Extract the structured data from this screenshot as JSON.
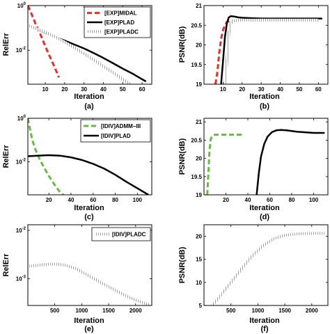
{
  "colors": {
    "red": "#e03030",
    "black": "#000000",
    "gray": "#8a8a8a",
    "green": "#66bb44"
  },
  "chart_data": [
    {
      "id": "a",
      "caption": "(a)",
      "type": "line",
      "xlabel": "Iteration",
      "ylabel": "RelErr",
      "xlim": [
        1,
        65
      ],
      "ylim": [
        0.0003,
        1
      ],
      "yscale": "log",
      "xticks": [
        10,
        20,
        30,
        40,
        50,
        60
      ],
      "xtick_labels": [
        "10",
        "20",
        "30",
        "40",
        "50",
        "60"
      ],
      "yticks": [
        1,
        0.01
      ],
      "ytick_labels": [
        {
          "base": "10",
          "exp": "0"
        },
        {
          "base": "10",
          "exp": "-2"
        }
      ],
      "legend": {
        "position": "top-right"
      },
      "series": [
        {
          "name": "[EXP]MIDAL",
          "style": "dash",
          "color": "red",
          "x": [
            1,
            3,
            5,
            8,
            10,
            12,
            14,
            16,
            17
          ],
          "y": [
            1,
            0.4,
            0.15,
            0.04,
            0.015,
            0.006,
            0.0025,
            0.001,
            0.0006
          ]
        },
        {
          "name": "[EXP]PLAD",
          "style": "solid",
          "color": "black",
          "x": [
            1,
            5,
            10,
            15,
            20,
            25,
            30,
            35,
            40,
            45,
            50,
            55,
            60,
            62
          ],
          "y": [
            0.13,
            0.09,
            0.06,
            0.04,
            0.027,
            0.018,
            0.012,
            0.0075,
            0.0045,
            0.0026,
            0.0015,
            0.0009,
            0.0005,
            0.0004
          ]
        },
        {
          "name": "[EXP]PLADC",
          "style": "hatch",
          "color": "gray",
          "x": [
            1,
            5,
            10,
            15,
            20,
            25,
            30,
            35,
            40,
            45,
            50,
            54
          ],
          "y": [
            0.13,
            0.095,
            0.065,
            0.04,
            0.023,
            0.013,
            0.007,
            0.0037,
            0.0019,
            0.001,
            0.0005,
            0.0003
          ]
        }
      ]
    },
    {
      "id": "b",
      "caption": "(b)",
      "type": "line",
      "xlabel": "Iteration",
      "ylabel": "PSNR(dB)",
      "xlim": [
        0,
        65
      ],
      "ylim": [
        19,
        21
      ],
      "xticks": [
        10,
        20,
        30,
        40,
        50,
        60
      ],
      "xtick_labels": [
        "10",
        "20",
        "30",
        "40",
        "50",
        "60"
      ],
      "yticks": [
        19,
        19.5,
        20,
        20.5,
        21
      ],
      "ytick_labels": [
        "19",
        "19.5",
        "20",
        "20.5",
        "21"
      ],
      "series": [
        {
          "name": "[EXP]MIDAL",
          "style": "dash",
          "color": "red",
          "x": [
            6,
            7,
            8,
            9,
            10,
            11,
            12,
            14,
            15
          ],
          "y": [
            19,
            19.3,
            19.8,
            20.15,
            20.38,
            20.5,
            20.58,
            20.62,
            20.62
          ]
        },
        {
          "name": "[EXP]PLAD",
          "style": "solid",
          "color": "black",
          "x": [
            9,
            10,
            11,
            12,
            13,
            14,
            16,
            18,
            20,
            25,
            30,
            40,
            50,
            60,
            62
          ],
          "y": [
            19,
            19.6,
            20.2,
            20.55,
            20.7,
            20.73,
            20.72,
            20.7,
            20.69,
            20.68,
            20.67,
            20.67,
            20.67,
            20.67,
            20.67
          ]
        },
        {
          "name": "[EXP]PLADC",
          "style": "hatch",
          "color": "gray",
          "x": [
            11,
            12,
            13,
            14,
            15,
            17,
            20,
            30,
            40,
            50,
            60
          ],
          "y": [
            19,
            19.6,
            20.3,
            20.55,
            20.6,
            20.62,
            20.63,
            20.63,
            20.63,
            20.63,
            20.63
          ]
        }
      ]
    },
    {
      "id": "c",
      "caption": "(c)",
      "type": "line",
      "xlabel": "Iteration",
      "ylabel": "RelErr",
      "xlim": [
        1,
        113
      ],
      "ylim": [
        0.0003,
        1
      ],
      "yscale": "log",
      "xticks": [
        20,
        40,
        60,
        80,
        100
      ],
      "xtick_labels": [
        "20",
        "40",
        "60",
        "80",
        "100"
      ],
      "yticks": [
        1,
        0.01
      ],
      "ytick_labels": [
        {
          "base": "10",
          "exp": "0"
        },
        {
          "base": "10",
          "exp": "-2"
        }
      ],
      "legend": {
        "position": "top-right"
      },
      "series": [
        {
          "name": "[IDIV]ADMM−III",
          "style": "dash",
          "color": "green",
          "x": [
            1,
            3,
            5,
            8,
            12,
            16,
            20,
            25,
            30,
            33
          ],
          "y": [
            1,
            0.3,
            0.1,
            0.035,
            0.012,
            0.005,
            0.0022,
            0.0009,
            0.0004,
            0.0003
          ]
        },
        {
          "name": "[IDIV]PLAD",
          "style": "solid",
          "color": "black",
          "x": [
            1,
            10,
            20,
            30,
            40,
            50,
            60,
            70,
            80,
            90,
            100,
            110
          ],
          "y": [
            0.018,
            0.019,
            0.02,
            0.019,
            0.016,
            0.012,
            0.008,
            0.0048,
            0.0025,
            0.0012,
            0.0006,
            0.0003
          ]
        }
      ]
    },
    {
      "id": "d",
      "caption": "(d)",
      "type": "line",
      "xlabel": "Iteration",
      "ylabel": "PSNR(dB)",
      "xlim": [
        0,
        113
      ],
      "ylim": [
        19,
        21.1
      ],
      "xticks": [
        20,
        40,
        60,
        80,
        100
      ],
      "xtick_labels": [
        "20",
        "40",
        "60",
        "80",
        "100"
      ],
      "yticks": [
        19,
        19.5,
        20,
        20.5,
        21
      ],
      "ytick_labels": [
        "19",
        "19.5",
        "20",
        "20.5",
        "21"
      ],
      "series": [
        {
          "name": "[IDIV]ADMM−III",
          "style": "dash",
          "color": "green",
          "x": [
            3,
            4,
            5,
            6,
            7,
            8,
            10,
            15,
            20,
            25,
            30,
            35
          ],
          "y": [
            19,
            19.6,
            20.2,
            20.5,
            20.6,
            20.63,
            20.65,
            20.65,
            20.65,
            20.65,
            20.65,
            20.65
          ]
        },
        {
          "name": "[IDIV]PLAD",
          "style": "solid",
          "color": "black",
          "x": [
            48,
            50,
            52,
            55,
            58,
            62,
            66,
            70,
            75,
            80,
            85,
            90,
            100,
            110
          ],
          "y": [
            19,
            19.6,
            20.05,
            20.4,
            20.6,
            20.72,
            20.77,
            20.78,
            20.77,
            20.75,
            20.73,
            20.72,
            20.7,
            20.7
          ]
        }
      ]
    },
    {
      "id": "e",
      "caption": "(e)",
      "type": "line",
      "xlabel": "Iteration",
      "ylabel": "RelErr",
      "xlim": [
        1,
        2300
      ],
      "ylim": [
        0.00028,
        0.013
      ],
      "yscale": "log",
      "xticks": [
        500,
        1000,
        1500,
        2000
      ],
      "xtick_labels": [
        "500",
        "1000",
        "1500",
        "2000"
      ],
      "yticks": [
        0.01,
        0.001
      ],
      "ytick_labels": [
        {
          "base": "10",
          "exp": "-2"
        },
        {
          "base": "10",
          "exp": "-3"
        }
      ],
      "legend": {
        "position": "top-right"
      },
      "series": [
        {
          "name": "[IDIV]PLADC",
          "style": "hatch",
          "color": "gray",
          "x": [
            1,
            200,
            400,
            550,
            700,
            900,
            1100,
            1300,
            1500,
            1700,
            1900,
            2100,
            2250
          ],
          "y": [
            0.0018,
            0.0019,
            0.002,
            0.002,
            0.0019,
            0.0016,
            0.0012,
            0.0009,
            0.00068,
            0.00052,
            0.0004,
            0.00033,
            0.00029
          ]
        }
      ]
    },
    {
      "id": "f",
      "caption": "(f)",
      "type": "line",
      "xlabel": "Iteration",
      "ylabel": "PSNR(dB)",
      "xlim": [
        0,
        2300
      ],
      "ylim": [
        5,
        22.5
      ],
      "xticks": [
        500,
        1000,
        1500,
        2000
      ],
      "xtick_labels": [
        "500",
        "1000",
        "1500",
        "2000"
      ],
      "yticks": [
        5,
        10,
        15,
        20
      ],
      "ytick_labels": [
        "5",
        "10",
        "15",
        "20"
      ],
      "series": [
        {
          "name": "[IDIV]PLADC",
          "style": "hatch",
          "color": "gray",
          "x": [
            150,
            300,
            500,
            700,
            900,
            1100,
            1300,
            1500,
            1700,
            1900,
            2100,
            2250
          ],
          "y": [
            5,
            7,
            10,
            13,
            15.8,
            18,
            19.5,
            20.2,
            20.5,
            20.6,
            20.65,
            20.65
          ]
        }
      ]
    }
  ]
}
